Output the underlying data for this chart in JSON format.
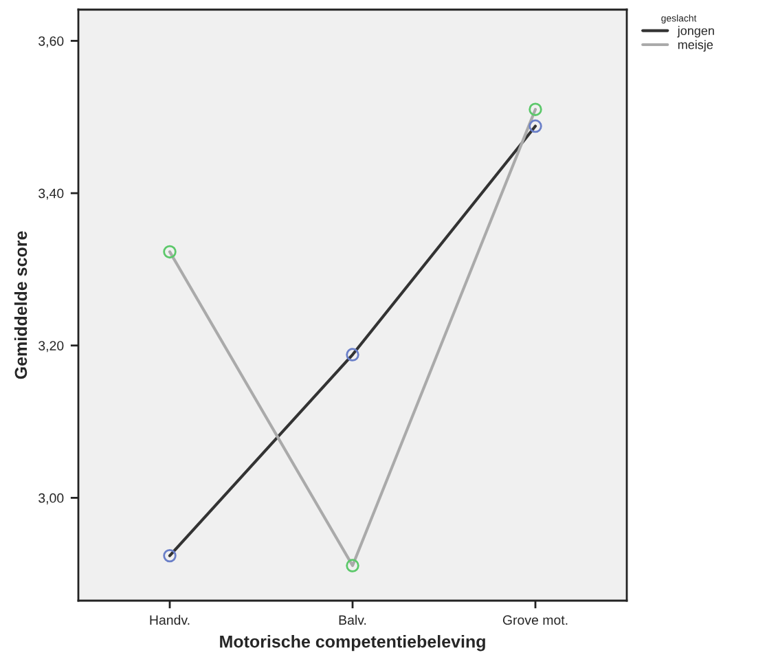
{
  "chart_data": {
    "type": "line",
    "xlabel": "Motorische competentiebeleving",
    "ylabel": "Gemiddelde score",
    "legend_title": "geslacht",
    "categories": [
      "Handv.",
      "Balv.",
      "Grove mot."
    ],
    "series": [
      {
        "name": "jongen",
        "color": "#333333",
        "colors": [
          "#6a7fc8",
          "#6a7fc8",
          "#6a7fc8"
        ],
        "values": [
          2.924,
          3.188,
          3.488
        ]
      },
      {
        "name": "meisje",
        "color": "#aaaaaa",
        "colors": [
          "#5cc86a",
          "#5cc86a",
          "#5cc86a"
        ],
        "values": [
          3.323,
          2.911,
          3.51
        ]
      }
    ],
    "ylim": [
      2.865,
      3.641
    ],
    "yticks": [
      {
        "value": 3.0,
        "label": "3,00"
      },
      {
        "value": 3.2,
        "label": "3,20"
      },
      {
        "value": 3.4,
        "label": "3,40"
      },
      {
        "value": 3.6,
        "label": "3,60"
      }
    ],
    "grid": false,
    "legend": "top right",
    "marker": "circle",
    "line_style": "solid"
  }
}
